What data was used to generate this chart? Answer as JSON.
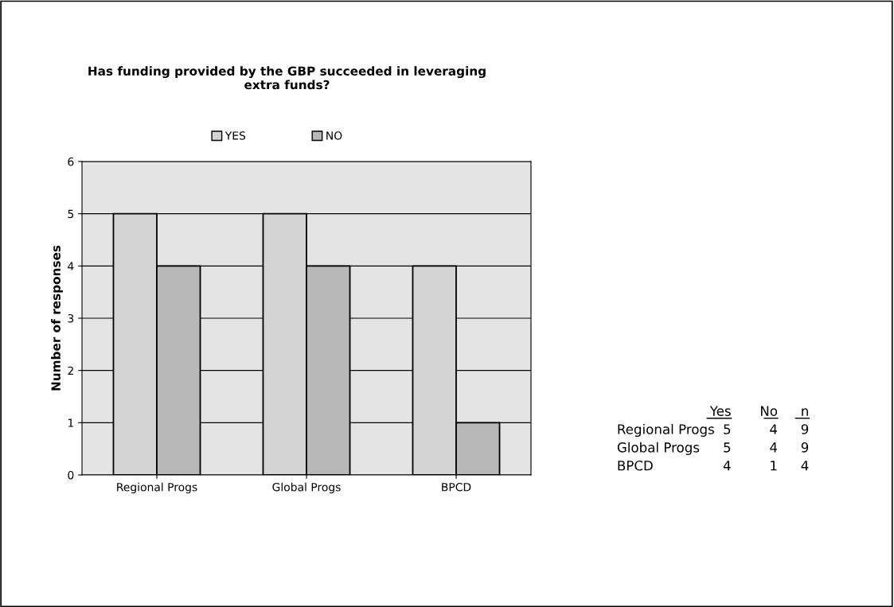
{
  "chart_data": {
    "type": "bar",
    "title": "Has funding provided by the GBP succeeded in leveraging\nextra funds?",
    "ylabel": "Number of responses",
    "categories": [
      "Regional Progs",
      "Global Progs",
      "BPCD"
    ],
    "series": [
      {
        "name": "YES",
        "color": "#d4d4d4",
        "values": [
          5,
          5,
          4
        ]
      },
      {
        "name": "NO",
        "color": "#b8b8b8",
        "values": [
          4,
          4,
          1
        ]
      }
    ],
    "ylim": [
      0,
      6
    ],
    "yticks": [
      0,
      1,
      2,
      3,
      4,
      5,
      6
    ],
    "grid": "y",
    "legend": "top",
    "annotations": [
      "Yes",
      "No",
      "n",
      "Regional Progs",
      "5",
      "4",
      "9",
      "Global Progs",
      "5",
      "4",
      "9",
      "BPCD",
      "4",
      "1",
      "4"
    ]
  }
}
